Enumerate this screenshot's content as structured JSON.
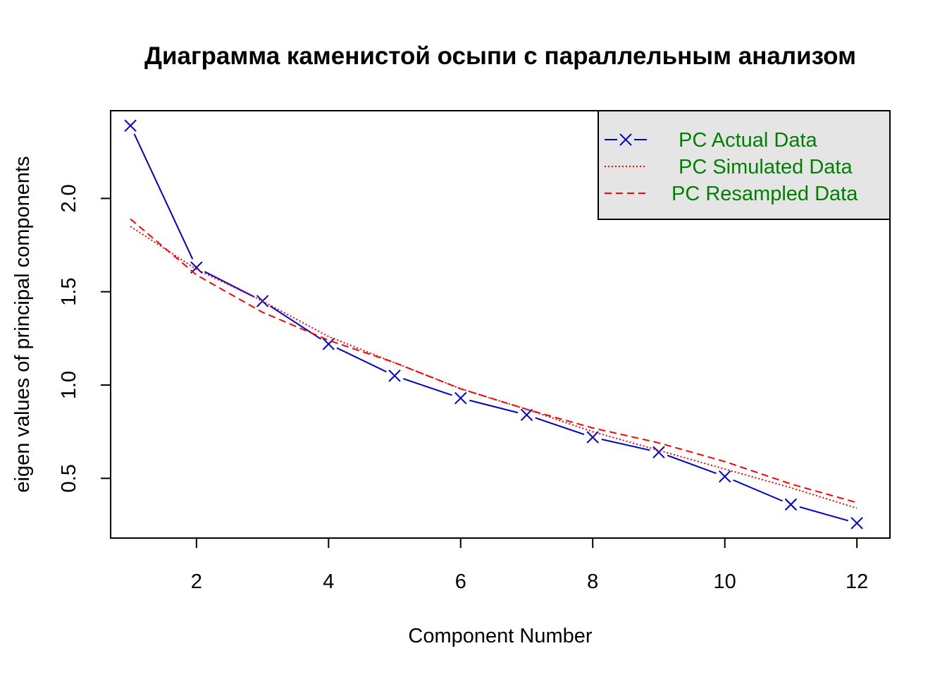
{
  "chart_data": {
    "type": "line",
    "title": "Диаграмма каменистой осыпи с параллельным анализом",
    "xlabel": "Component Number",
    "ylabel": "eigen values of principal components",
    "xlim": [
      0.7,
      12.5
    ],
    "ylim": [
      0.18,
      2.47
    ],
    "x_ticks": [
      2,
      4,
      6,
      8,
      10,
      12
    ],
    "y_ticks": [
      0.5,
      1.0,
      1.5,
      2.0
    ],
    "x_tick_labels": [
      "2",
      "4",
      "6",
      "8",
      "10",
      "12"
    ],
    "y_tick_labels": [
      "0.5",
      "1.0",
      "1.5",
      "2.0"
    ],
    "x": [
      1,
      2,
      3,
      4,
      5,
      6,
      7,
      8,
      9,
      10,
      11,
      12
    ],
    "series": [
      {
        "name": "PC  Actual Data",
        "style": "dashed-long-with-x-markers",
        "color": "#0000cc",
        "values": [
          2.39,
          1.63,
          1.45,
          1.22,
          1.05,
          0.93,
          0.84,
          0.72,
          0.64,
          0.51,
          0.36,
          0.26
        ]
      },
      {
        "name": "PC  Simulated Data",
        "style": "dotted",
        "color": "#ff0000",
        "values": [
          1.85,
          1.62,
          1.45,
          1.26,
          1.12,
          0.98,
          0.87,
          0.75,
          0.65,
          0.55,
          0.45,
          0.34
        ]
      },
      {
        "name": "PC  Resampled Data",
        "style": "dashed",
        "color": "#ff0000",
        "values": [
          1.89,
          1.59,
          1.39,
          1.24,
          1.12,
          0.98,
          0.87,
          0.77,
          0.69,
          0.59,
          0.47,
          0.37
        ]
      }
    ],
    "legend": {
      "placement": "top-right",
      "background": "#e5e5e5",
      "text_color": "#008000"
    },
    "grid": false
  }
}
